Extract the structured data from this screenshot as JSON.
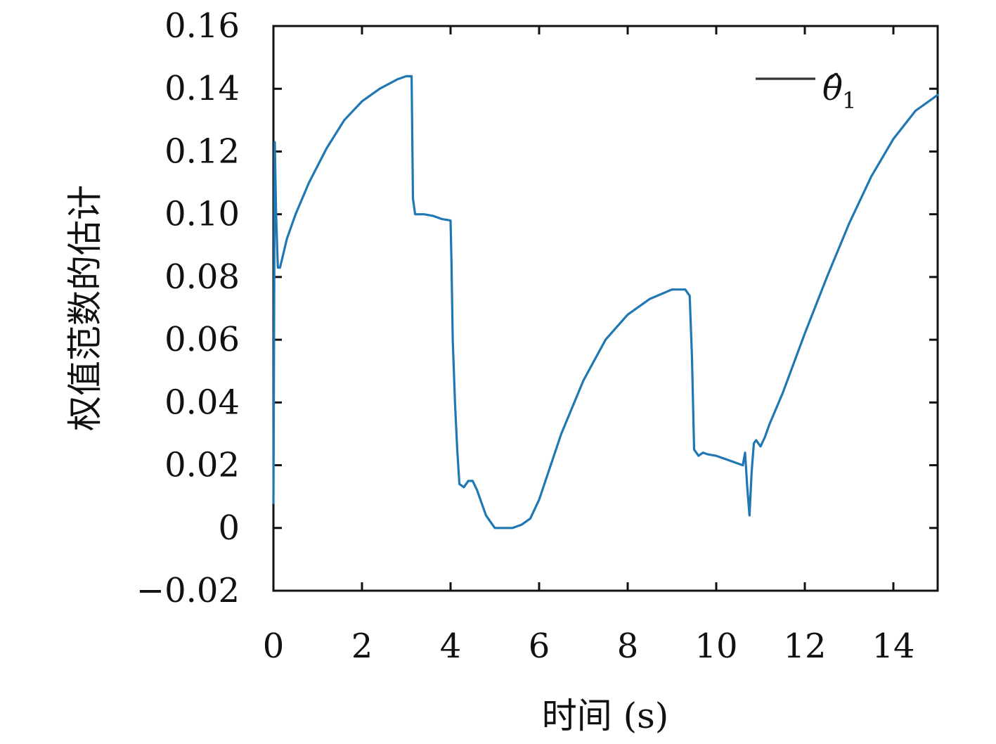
{
  "chart_data": {
    "type": "line",
    "xlabel": "时间 (s)",
    "ylabel": "权值范数的估计",
    "xlim": [
      0,
      15
    ],
    "ylim": [
      -0.02,
      0.16
    ],
    "x_ticks": [
      0,
      2,
      4,
      6,
      8,
      10,
      12,
      14
    ],
    "x_tick_labels": [
      "0",
      "2",
      "4",
      "6",
      "8",
      "10",
      "12",
      "14"
    ],
    "y_ticks": [
      -0.02,
      0,
      0.02,
      0.04,
      0.06,
      0.08,
      0.1,
      0.12,
      0.14,
      0.16
    ],
    "y_tick_labels": [
      "−0.02",
      "0",
      "0.02",
      "0.04",
      "0.06",
      "0.08",
      "0.10",
      "0.12",
      "0.14",
      "0.16"
    ],
    "grid": false,
    "legend_position": "top-right",
    "series": [
      {
        "name": "θ̂",
        "name_subscript": "1",
        "color": "#1f77b4",
        "x": [
          0.0,
          0.03,
          0.06,
          0.1,
          0.15,
          0.2,
          0.25,
          0.3,
          0.5,
          0.8,
          1.2,
          1.6,
          2.0,
          2.4,
          2.8,
          3.0,
          3.12,
          3.15,
          3.2,
          3.3,
          3.4,
          3.6,
          3.8,
          4.0,
          4.02,
          4.05,
          4.1,
          4.15,
          4.2,
          4.3,
          4.4,
          4.5,
          4.6,
          4.7,
          4.8,
          5.0,
          5.2,
          5.4,
          5.6,
          5.8,
          6.0,
          6.5,
          7.0,
          7.5,
          8.0,
          8.5,
          9.0,
          9.3,
          9.4,
          9.45,
          9.5,
          9.6,
          9.7,
          9.8,
          10.0,
          10.2,
          10.4,
          10.6,
          10.65,
          10.7,
          10.75,
          10.8,
          10.85,
          10.9,
          11.0,
          11.1,
          11.2,
          11.5,
          12.0,
          12.5,
          13.0,
          13.5,
          14.0,
          14.5,
          15.0
        ],
        "values": [
          0.008,
          0.123,
          0.1,
          0.083,
          0.083,
          0.086,
          0.089,
          0.092,
          0.1,
          0.11,
          0.121,
          0.13,
          0.136,
          0.14,
          0.143,
          0.144,
          0.144,
          0.105,
          0.1,
          0.1,
          0.1,
          0.0995,
          0.0985,
          0.098,
          0.085,
          0.06,
          0.04,
          0.025,
          0.014,
          0.013,
          0.015,
          0.015,
          0.012,
          0.008,
          0.004,
          0.0,
          0.0,
          0.0,
          0.001,
          0.003,
          0.009,
          0.03,
          0.047,
          0.06,
          0.068,
          0.073,
          0.076,
          0.076,
          0.074,
          0.055,
          0.025,
          0.023,
          0.024,
          0.0235,
          0.023,
          0.022,
          0.021,
          0.02,
          0.024,
          0.013,
          0.004,
          0.018,
          0.027,
          0.028,
          0.026,
          0.029,
          0.033,
          0.043,
          0.062,
          0.08,
          0.097,
          0.112,
          0.124,
          0.133,
          0.138
        ]
      }
    ]
  }
}
